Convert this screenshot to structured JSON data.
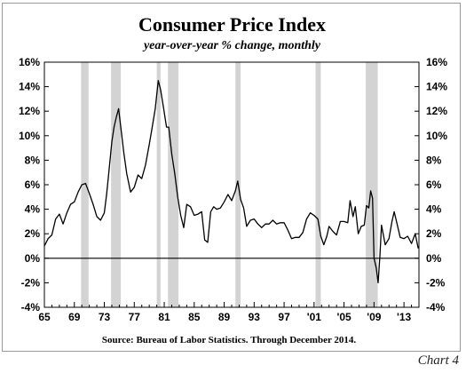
{
  "chart_data": {
    "type": "line",
    "title": "Consumer Price Index",
    "subtitle": "year-over-year % change, monthly",
    "source": "Source: Bureau of Labor Statistics. Through December 2014.",
    "xlabel": "",
    "ylabel": "",
    "xlim": [
      1965,
      2015
    ],
    "ylim": [
      -4,
      16
    ],
    "x_ticks": [
      1965,
      1969,
      1973,
      1977,
      1981,
      1985,
      1989,
      1993,
      1997,
      2001,
      2005,
      2009,
      2013
    ],
    "x_tick_labels": [
      "65",
      "69",
      "73",
      "77",
      "81",
      "85",
      "89",
      "93",
      "97",
      "'01",
      "'05",
      "'09",
      "'13"
    ],
    "y_ticks": [
      -4,
      -2,
      0,
      2,
      4,
      6,
      8,
      10,
      12,
      14,
      16
    ],
    "y_tick_labels": [
      "-4%",
      "-2%",
      "0%",
      "2%",
      "4%",
      "6%",
      "8%",
      "10%",
      "12%",
      "14%",
      "16%"
    ],
    "recessions": [
      [
        1969.9,
        1970.9
      ],
      [
        1973.9,
        1975.2
      ],
      [
        1980.0,
        1980.5
      ],
      [
        1981.5,
        1982.9
      ],
      [
        1990.5,
        1991.2
      ],
      [
        2001.2,
        2001.9
      ],
      [
        2007.9,
        2009.5
      ]
    ],
    "grid": false,
    "legend": "none",
    "line_color": "#000000",
    "recession_color": "#d3d3d3",
    "series": [
      {
        "x": [
          1965.0,
          1965.5,
          1966.0,
          1966.5,
          1967.0,
          1967.5,
          1968.0,
          1968.5,
          1969.0,
          1969.5,
          1970.0,
          1970.5,
          1971.0,
          1971.5,
          1972.0,
          1972.5,
          1973.0,
          1973.3,
          1973.6,
          1974.0,
          1974.3,
          1974.6,
          1974.9,
          1975.3,
          1975.6,
          1976.0,
          1976.5,
          1977.0,
          1977.5,
          1978.0,
          1978.5,
          1979.0,
          1979.4,
          1979.8,
          1980.2,
          1980.5,
          1980.9,
          1981.3,
          1981.6,
          1982.0,
          1982.4,
          1982.8,
          1983.2,
          1983.6,
          1984.0,
          1984.5,
          1985.0,
          1985.5,
          1986.0,
          1986.4,
          1986.8,
          1987.2,
          1987.6,
          1988.0,
          1988.5,
          1989.0,
          1989.5,
          1990.0,
          1990.5,
          1990.8,
          1991.2,
          1991.6,
          1992.0,
          1992.5,
          1993.0,
          1993.5,
          1994.0,
          1994.5,
          1995.0,
          1995.5,
          1996.0,
          1996.5,
          1997.0,
          1997.5,
          1998.0,
          1998.5,
          1999.0,
          1999.5,
          2000.0,
          2000.5,
          2001.0,
          2001.5,
          2001.9,
          2002.3,
          2002.7,
          2003.0,
          2003.5,
          2004.0,
          2004.5,
          2005.0,
          2005.5,
          2005.8,
          2006.2,
          2006.5,
          2006.9,
          2007.3,
          2007.7,
          2008.0,
          2008.3,
          2008.55,
          2008.8,
          2009.0,
          2009.3,
          2009.55,
          2009.8,
          2010.0,
          2010.5,
          2011.0,
          2011.4,
          2011.7,
          2012.0,
          2012.5,
          2013.0,
          2013.5,
          2014.0,
          2014.5,
          2014.9
        ],
        "y": [
          1.0,
          1.6,
          1.9,
          3.2,
          3.6,
          2.8,
          3.7,
          4.4,
          4.6,
          5.4,
          6.0,
          6.1,
          5.3,
          4.4,
          3.4,
          3.1,
          3.7,
          5.2,
          7.0,
          9.5,
          10.7,
          11.5,
          12.2,
          10.2,
          8.6,
          6.9,
          5.4,
          5.8,
          6.8,
          6.5,
          7.6,
          9.3,
          10.7,
          12.2,
          14.5,
          13.8,
          12.3,
          10.7,
          10.7,
          8.5,
          6.9,
          5.0,
          3.5,
          2.5,
          4.4,
          4.2,
          3.5,
          3.6,
          3.8,
          1.5,
          1.3,
          3.8,
          4.2,
          4.0,
          4.1,
          4.6,
          5.2,
          4.7,
          5.5,
          6.3,
          4.8,
          4.1,
          2.6,
          3.1,
          3.2,
          2.8,
          2.5,
          2.8,
          2.8,
          3.1,
          2.8,
          2.9,
          2.9,
          2.3,
          1.6,
          1.7,
          1.7,
          2.1,
          3.2,
          3.7,
          3.5,
          3.2,
          1.8,
          1.1,
          1.8,
          2.6,
          2.2,
          1.9,
          3.0,
          3.0,
          2.9,
          4.7,
          3.4,
          4.2,
          2.0,
          2.6,
          2.7,
          4.3,
          4.1,
          5.5,
          4.9,
          0.0,
          -0.8,
          -2.0,
          0.3,
          2.7,
          1.1,
          1.6,
          3.0,
          3.8,
          3.0,
          1.7,
          1.6,
          1.8,
          1.2,
          2.0,
          0.8
        ]
      }
    ]
  }
}
